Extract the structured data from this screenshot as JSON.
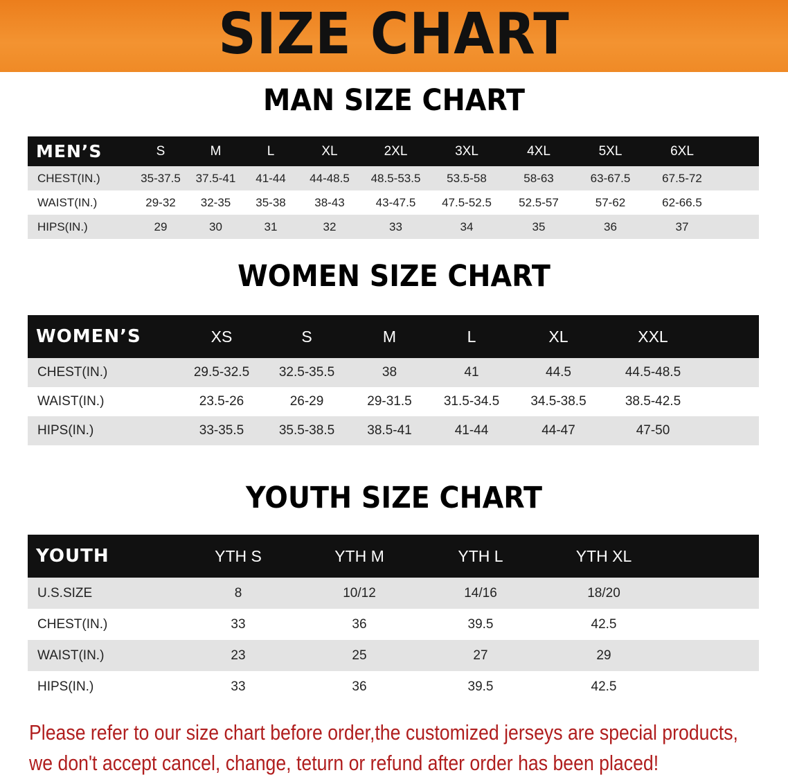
{
  "banner": {
    "title": "SIZE CHART",
    "color": "#f08a24"
  },
  "men": {
    "heading": "MAN SIZE CHART",
    "header": [
      "MEN’S",
      "S",
      "M",
      "L",
      "XL",
      "2XL",
      "3XL",
      "4XL",
      "5XL",
      "6XL"
    ],
    "rows": [
      [
        "CHEST(IN.)",
        "35-37.5",
        "37.5-41",
        "41-44",
        "44-48.5",
        "48.5-53.5",
        "53.5-58",
        "58-63",
        "63-67.5",
        "67.5-72"
      ],
      [
        "WAIST(IN.)",
        "29-32",
        "32-35",
        "35-38",
        "38-43",
        "43-47.5",
        "47.5-52.5",
        "52.5-57",
        "57-62",
        "62-66.5"
      ],
      [
        "HIPS(IN.)",
        "29",
        "30",
        "31",
        "32",
        "33",
        "34",
        "35",
        "36",
        "37"
      ]
    ]
  },
  "women": {
    "heading": "WOMEN SIZE CHART",
    "header": [
      "WOMEN’S",
      "XS",
      "S",
      "M",
      "L",
      "XL",
      "XXL"
    ],
    "rows": [
      [
        "CHEST(IN.)",
        "29.5-32.5",
        "32.5-35.5",
        "38",
        "41",
        "44.5",
        "44.5-48.5"
      ],
      [
        "WAIST(IN.)",
        "23.5-26",
        "26-29",
        "29-31.5",
        "31.5-34.5",
        "34.5-38.5",
        "38.5-42.5"
      ],
      [
        "HIPS(IN.)",
        "33-35.5",
        "35.5-38.5",
        "38.5-41",
        "41-44",
        "44-47",
        "47-50"
      ]
    ]
  },
  "youth": {
    "heading": "YOUTH SIZE CHART",
    "header": [
      "YOUTH",
      "YTH S",
      "YTH M",
      "YTH L",
      "YTH XL"
    ],
    "rows": [
      [
        "U.S.SIZE",
        "8",
        "10/12",
        "14/16",
        "18/20"
      ],
      [
        "CHEST(IN.)",
        "33",
        "36",
        "39.5",
        "42.5"
      ],
      [
        "WAIST(IN.)",
        "23",
        "25",
        "27",
        "29"
      ],
      [
        "HIPS(IN.)",
        "33",
        "36",
        "39.5",
        "42.5"
      ]
    ]
  },
  "notice": {
    "line1": "Please refer to our size chart before order,the customized jerseys are special products,",
    "line2": "we don't accept cancel, change, teturn or refund after order has been placed!",
    "color": "#b01e1e"
  }
}
